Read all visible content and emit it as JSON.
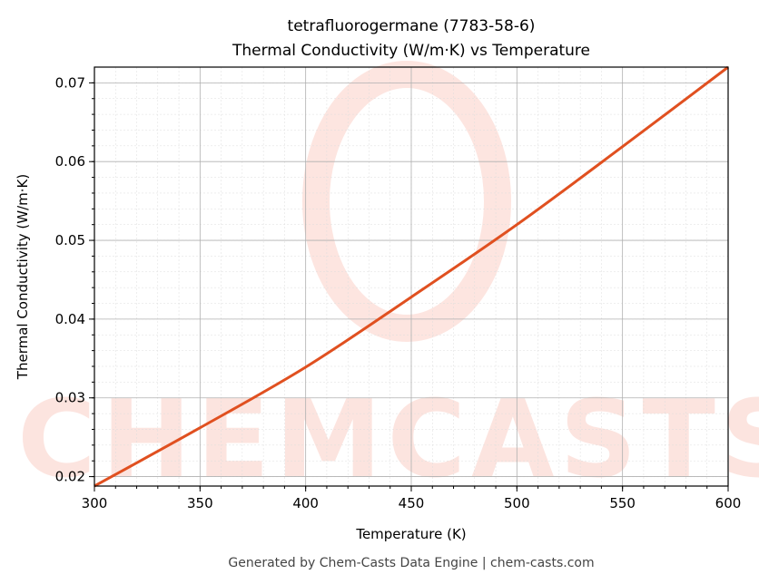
{
  "chart_data": {
    "type": "line",
    "title": "tetrafluorogermane (7783-58-6)",
    "subtitle": "Thermal Conductivity (W/m·K) vs Temperature",
    "xlabel": "Temperature (K)",
    "ylabel": "Thermal Conductivity (W/m·K)",
    "xlim": [
      300,
      600
    ],
    "ylim": [
      0.0188,
      0.072
    ],
    "xticks": [
      300,
      350,
      400,
      450,
      500,
      550,
      600
    ],
    "yticks": [
      0.02,
      0.03,
      0.04,
      0.05,
      0.06,
      0.07
    ],
    "grid": true,
    "series": [
      {
        "color": "#e05020",
        "x": [
          300,
          350,
          400,
          450,
          500,
          550,
          600
        ],
        "y": [
          0.0188,
          0.0262,
          0.0339,
          0.0428,
          0.052,
          0.0619,
          0.072
        ]
      }
    ]
  },
  "watermark": "CHEMCASTS",
  "footer": "Generated by Chem-Casts Data Engine | chem-casts.com"
}
